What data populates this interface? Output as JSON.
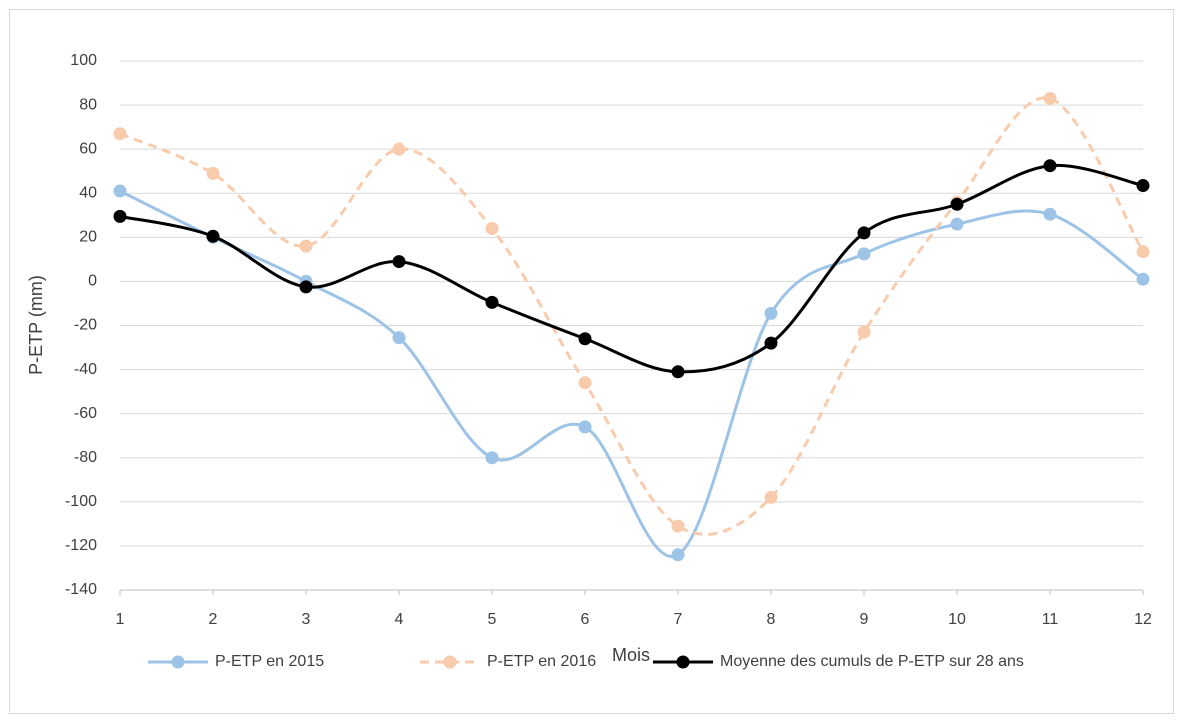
{
  "chart_data": {
    "type": "line",
    "smooth": true,
    "x_label": "Mois",
    "y_label": "P-ETP (mm)",
    "x": [
      1,
      2,
      3,
      4,
      5,
      6,
      7,
      8,
      9,
      10,
      11,
      12
    ],
    "xlim": [
      1,
      12
    ],
    "xticks": [
      1,
      2,
      3,
      4,
      5,
      6,
      7,
      8,
      9,
      10,
      11,
      12
    ],
    "ylim": [
      -140,
      100
    ],
    "yticks": [
      -140,
      -120,
      -100,
      -80,
      -60,
      -40,
      -20,
      0,
      20,
      40,
      60,
      80,
      100
    ],
    "grid": true,
    "legend": "bottom",
    "series": [
      {
        "name": "P-ETP en 2015",
        "color": "#9dc3e6",
        "dashed": false,
        "values": [
          41,
          20,
          0,
          -25.5,
          -80,
          -66,
          -124,
          -14.5,
          12.5,
          26,
          30.5,
          1
        ]
      },
      {
        "name": "P-ETP en 2016",
        "color": "#f8cbad",
        "dashed": true,
        "values": [
          67,
          49,
          16,
          60,
          24,
          -46,
          -111,
          -98,
          -23,
          36,
          83,
          13.5
        ]
      },
      {
        "name": "Moyenne des cumuls de P-ETP sur 28 ans",
        "color": "#000000",
        "dashed": false,
        "values": [
          29.5,
          20.5,
          -2.5,
          9,
          -9.5,
          -26,
          -41,
          -28,
          22,
          35,
          52.5,
          43.5
        ]
      }
    ]
  }
}
